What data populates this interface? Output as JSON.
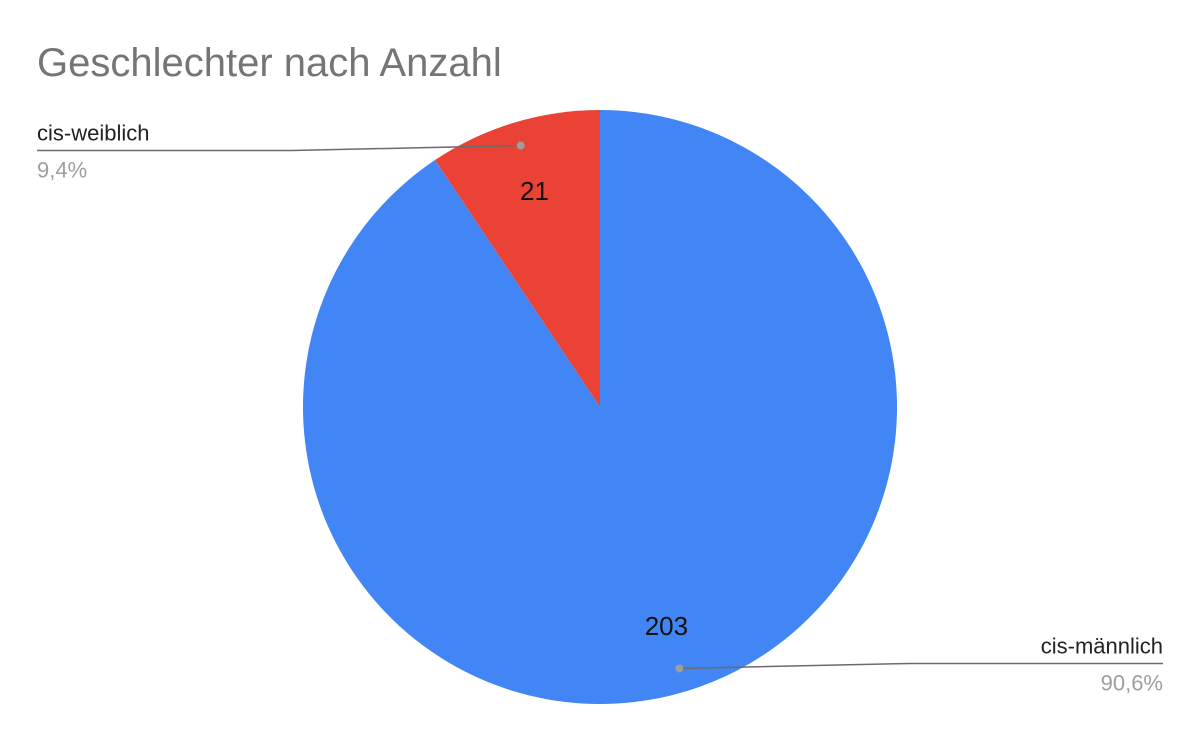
{
  "chart_data": {
    "type": "pie",
    "title": "Geschlechter nach Anzahl",
    "slices": [
      {
        "label": "cis-männlich",
        "value": 203,
        "value_label": "203",
        "percent_label": "90,6%",
        "color": "#4285f4"
      },
      {
        "label": "cis-weiblich",
        "value": 21,
        "value_label": "21",
        "percent_label": "9,4%",
        "color": "#ea4335"
      }
    ],
    "start_angle": "12 o'clock, clockwise",
    "legend": "leader-line labels outside the pie"
  }
}
